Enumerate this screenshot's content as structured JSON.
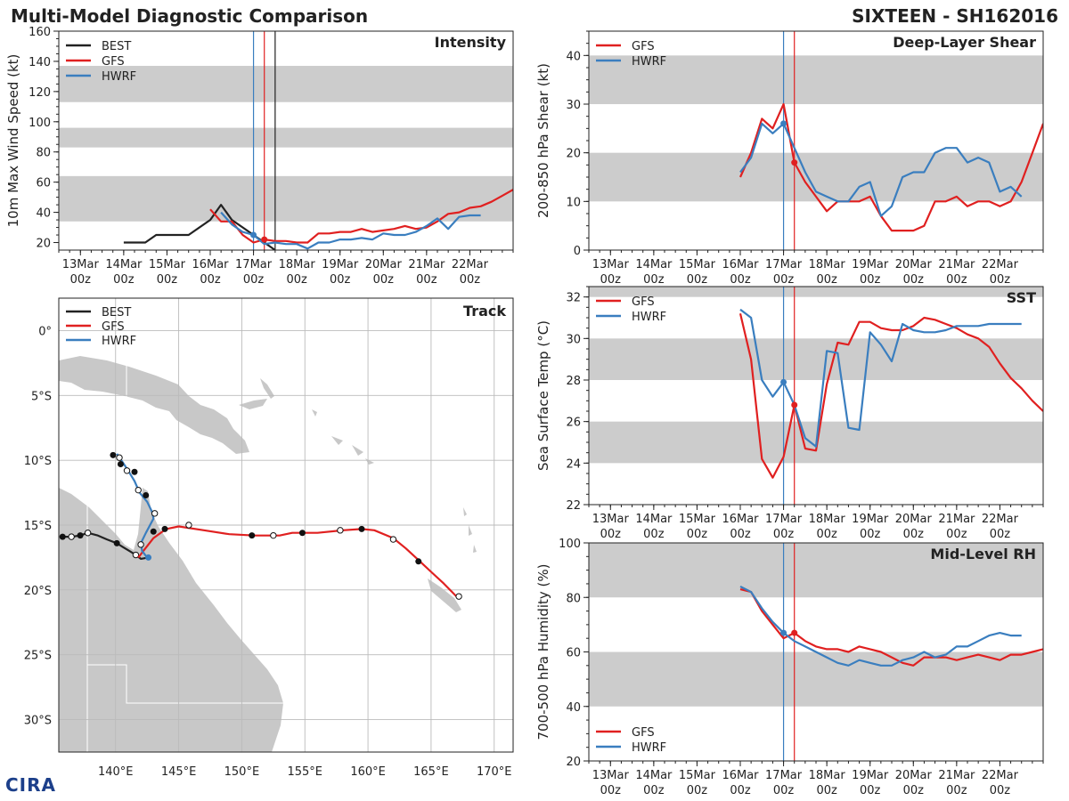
{
  "header": {
    "title": "Multi-Model Diagnostic Comparison",
    "storm": "SIXTEEN - SH162016",
    "logo": "CIRA"
  },
  "colors": {
    "best": "#222222",
    "gfs": "#e02020",
    "hwrf": "#3a7ebf",
    "band": "#cccccc",
    "land": "#c8c8c8",
    "grid": "#bbbbbb"
  },
  "time_axis": {
    "tick_labels": [
      "13Mar\n00z",
      "14Mar\n00z",
      "15Mar\n00z",
      "16Mar\n00z",
      "17Mar\n00z",
      "18Mar\n00z",
      "19Mar\n00z",
      "20Mar\n00z",
      "21Mar\n00z",
      "22Mar\n00z"
    ],
    "tick_days": [
      13,
      14,
      15,
      16,
      17,
      18,
      19,
      20,
      21,
      22
    ],
    "xlim": [
      12.5,
      23.0
    ],
    "vlines": [
      {
        "x": 17.0,
        "series": "hwrf"
      },
      {
        "x": 17.25,
        "series": "gfs"
      }
    ]
  },
  "chart_data": [
    {
      "id": "intensity",
      "type": "line",
      "title": "Intensity",
      "ylabel": "10m Max Wind Speed (kt)",
      "ylim": [
        15,
        160
      ],
      "yticks": [
        20,
        40,
        60,
        80,
        100,
        120,
        140,
        160
      ],
      "bands": [
        [
          34,
          64
        ],
        [
          83,
          96
        ],
        [
          113,
          137
        ]
      ],
      "extra_vline": {
        "x": 17.5,
        "series": "best"
      },
      "legend": [
        "BEST",
        "GFS",
        "HWRF"
      ],
      "legend_position": "top-left",
      "series": [
        {
          "name": "BEST",
          "key": "best",
          "x": [
            14,
            14.5,
            14.75,
            15,
            15.5,
            16,
            16.25,
            16.5,
            17,
            17.25,
            17.5
          ],
          "y": [
            20,
            20,
            25,
            25,
            25,
            35,
            45,
            35,
            25,
            20,
            15
          ]
        },
        {
          "name": "GFS",
          "key": "gfs",
          "x": [
            16,
            16.25,
            16.5,
            16.75,
            17,
            17.25,
            17.5,
            17.75,
            18,
            18.25,
            18.5,
            18.75,
            19,
            19.25,
            19.5,
            19.75,
            20,
            20.25,
            20.5,
            20.75,
            21,
            21.25,
            21.5,
            21.75,
            22,
            22.25,
            22.5,
            22.75,
            23
          ],
          "y": [
            42,
            34,
            34,
            25,
            20,
            22,
            21,
            21,
            20,
            20,
            26,
            26,
            27,
            27,
            29,
            27,
            28,
            29,
            31,
            29,
            30,
            34,
            39,
            40,
            43,
            44,
            47,
            51,
            55
          ]
        },
        {
          "name": "HWRF",
          "key": "hwrf",
          "x": [
            16.25,
            16.5,
            16.75,
            17,
            17.25,
            17.5,
            17.75,
            18,
            18.25,
            18.5,
            18.75,
            19,
            19.25,
            19.5,
            19.75,
            20,
            20.25,
            20.5,
            20.75,
            21,
            21.25,
            21.5,
            21.75,
            22,
            22.25
          ],
          "y": [
            40,
            32,
            27,
            25,
            19,
            20,
            19,
            19,
            16,
            20,
            20,
            22,
            22,
            23,
            22,
            26,
            25,
            25,
            27,
            31,
            36,
            29,
            37,
            38,
            38
          ]
        }
      ],
      "markers": [
        {
          "key": "hwrf",
          "x": 17,
          "y": 25
        },
        {
          "key": "gfs",
          "x": 17.25,
          "y": 22
        }
      ]
    },
    {
      "id": "shear",
      "type": "line",
      "title": "Deep-Layer Shear",
      "ylabel": "200-850 hPa Shear (kt)",
      "ylim": [
        0,
        45
      ],
      "yticks": [
        0,
        10,
        20,
        30,
        40
      ],
      "bands": [
        [
          10,
          20
        ],
        [
          30,
          40
        ]
      ],
      "legend": [
        "GFS",
        "HWRF"
      ],
      "legend_position": "top-left",
      "series": [
        {
          "name": "GFS",
          "key": "gfs",
          "x": [
            16,
            16.25,
            16.5,
            16.75,
            17,
            17.25,
            17.5,
            17.75,
            18,
            18.25,
            18.5,
            18.75,
            19,
            19.25,
            19.5,
            19.75,
            20,
            20.25,
            20.5,
            20.75,
            21,
            21.25,
            21.5,
            21.75,
            22,
            22.25,
            22.5,
            22.75,
            23
          ],
          "y": [
            15,
            20,
            27,
            25,
            30,
            18,
            14,
            11,
            8,
            10,
            10,
            10,
            11,
            7,
            4,
            4,
            4,
            5,
            10,
            10,
            11,
            9,
            10,
            10,
            9,
            10,
            14,
            20,
            26
          ]
        },
        {
          "name": "HWRF",
          "key": "hwrf",
          "x": [
            16,
            16.25,
            16.5,
            16.75,
            17,
            17.25,
            17.5,
            17.75,
            18,
            18.25,
            18.5,
            18.75,
            19,
            19.25,
            19.5,
            19.75,
            20,
            20.25,
            20.5,
            20.75,
            21,
            21.25,
            21.5,
            21.75,
            22,
            22.25,
            22.5
          ],
          "y": [
            16,
            19,
            26,
            24,
            26,
            21,
            16,
            12,
            11,
            10,
            10,
            13,
            14,
            7,
            9,
            15,
            16,
            16,
            20,
            21,
            21,
            18,
            19,
            18,
            12,
            13,
            11
          ]
        }
      ],
      "markers": [
        {
          "key": "hwrf",
          "x": 17,
          "y": 26
        },
        {
          "key": "gfs",
          "x": 17.25,
          "y": 18
        }
      ]
    },
    {
      "id": "sst",
      "type": "line",
      "title": "SST",
      "ylabel": "Sea Surface Temp (°C)",
      "ylim": [
        22,
        32.5
      ],
      "yticks": [
        22,
        24,
        26,
        28,
        30,
        32
      ],
      "bands": [
        [
          24,
          26
        ],
        [
          28,
          30
        ],
        [
          32,
          32.5
        ]
      ],
      "legend": [
        "GFS",
        "HWRF"
      ],
      "legend_position": "top-left",
      "series": [
        {
          "name": "GFS",
          "key": "gfs",
          "x": [
            16,
            16.25,
            16.5,
            16.75,
            17,
            17.25,
            17.5,
            17.75,
            18,
            18.25,
            18.5,
            18.75,
            19,
            19.25,
            19.5,
            19.75,
            20,
            20.25,
            20.5,
            20.75,
            21,
            21.25,
            21.5,
            21.75,
            22,
            22.25,
            22.5,
            22.75,
            23
          ],
          "y": [
            31.2,
            29.0,
            24.2,
            23.3,
            24.3,
            26.8,
            24.7,
            24.6,
            27.8,
            29.8,
            29.7,
            30.8,
            30.8,
            30.5,
            30.4,
            30.4,
            30.6,
            31.0,
            30.9,
            30.7,
            30.5,
            30.2,
            30.0,
            29.6,
            28.8,
            28.1,
            27.6,
            27.0,
            26.5
          ]
        },
        {
          "name": "HWRF",
          "key": "hwrf",
          "x": [
            16,
            16.25,
            16.5,
            16.75,
            17,
            17.25,
            17.5,
            17.75,
            18,
            18.25,
            18.5,
            18.75,
            19,
            19.25,
            19.5,
            19.75,
            20,
            20.25,
            20.5,
            20.75,
            21,
            21.25,
            21.5,
            21.75,
            22,
            22.25,
            22.5
          ],
          "y": [
            31.4,
            31.0,
            28.0,
            27.2,
            27.9,
            26.8,
            25.2,
            24.8,
            29.4,
            29.3,
            25.7,
            25.6,
            30.3,
            29.7,
            28.9,
            30.7,
            30.4,
            30.3,
            30.3,
            30.4,
            30.6,
            30.6,
            30.6,
            30.7,
            30.7,
            30.7,
            30.7
          ]
        }
      ],
      "markers": [
        {
          "key": "hwrf",
          "x": 17,
          "y": 27.9
        },
        {
          "key": "gfs",
          "x": 17.25,
          "y": 26.8
        }
      ]
    },
    {
      "id": "rh",
      "type": "line",
      "title": "Mid-Level RH",
      "ylabel": "700-500 hPa Humidity (%)",
      "ylim": [
        20,
        100
      ],
      "yticks": [
        20,
        40,
        60,
        80,
        100
      ],
      "bands": [
        [
          40,
          60
        ],
        [
          80,
          100
        ]
      ],
      "legend": [
        "GFS",
        "HWRF"
      ],
      "legend_position": "bottom-left",
      "series": [
        {
          "name": "GFS",
          "key": "gfs",
          "x": [
            16,
            16.25,
            16.5,
            16.75,
            17,
            17.25,
            17.5,
            17.75,
            18,
            18.25,
            18.5,
            18.75,
            19,
            19.25,
            19.5,
            19.75,
            20,
            20.25,
            20.5,
            20.75,
            21,
            21.25,
            21.5,
            21.75,
            22,
            22.25,
            22.5,
            22.75,
            23
          ],
          "y": [
            83,
            82,
            75,
            70,
            65,
            67,
            64,
            62,
            61,
            61,
            60,
            62,
            61,
            60,
            58,
            56,
            55,
            58,
            58,
            58,
            57,
            58,
            59,
            58,
            57,
            59,
            59,
            60,
            61
          ]
        },
        {
          "name": "HWRF",
          "key": "hwrf",
          "x": [
            16,
            16.25,
            16.5,
            16.75,
            17,
            17.25,
            17.5,
            17.75,
            18,
            18.25,
            18.5,
            18.75,
            19,
            19.25,
            19.5,
            19.75,
            20,
            20.25,
            20.5,
            20.75,
            21,
            21.25,
            21.5,
            21.75,
            22,
            22.25,
            22.5
          ],
          "y": [
            84,
            82,
            76,
            71,
            67,
            64,
            62,
            60,
            58,
            56,
            55,
            57,
            56,
            55,
            55,
            57,
            58,
            60,
            58,
            59,
            62,
            62,
            64,
            66,
            67,
            66,
            66
          ]
        }
      ],
      "markers": [
        {
          "key": "hwrf",
          "x": 17,
          "y": 67
        },
        {
          "key": "gfs",
          "x": 17.25,
          "y": 67
        }
      ]
    }
  ],
  "track": {
    "title": "Track",
    "legend": [
      "BEST",
      "GFS",
      "HWRF"
    ],
    "lon_range": [
      135.5,
      171.5
    ],
    "lat_range": [
      -32.5,
      2.5
    ],
    "lon_ticks": [
      140,
      145,
      150,
      155,
      160,
      165,
      170
    ],
    "lon_tick_labels": [
      "140°E",
      "145°E",
      "150°E",
      "155°E",
      "160°E",
      "165°E",
      "170°E"
    ],
    "lat_ticks": [
      0,
      -5,
      -10,
      -15,
      -20,
      -25,
      -30
    ],
    "lat_tick_labels": [
      "0°",
      "5°S",
      "10°S",
      "15°S",
      "20°S",
      "25°S",
      "30°S"
    ],
    "best": {
      "path": [
        [
          135.8,
          -15.9
        ],
        [
          136.5,
          -15.9
        ],
        [
          137.2,
          -15.8
        ],
        [
          137.8,
          -15.6
        ],
        [
          138.6,
          -15.8
        ],
        [
          139.3,
          -16.1
        ],
        [
          140.1,
          -16.4
        ],
        [
          140.6,
          -16.7
        ],
        [
          141.1,
          -17.0
        ],
        [
          141.6,
          -17.3
        ],
        [
          142.0,
          -17.6
        ],
        [
          142.6,
          -17.5
        ]
      ],
      "filled": [
        [
          135.8,
          -15.9
        ],
        [
          137.2,
          -15.8
        ],
        [
          140.1,
          -16.4
        ]
      ],
      "open": [
        [
          136.5,
          -15.9
        ],
        [
          137.8,
          -15.6
        ],
        [
          141.6,
          -17.3
        ]
      ]
    },
    "gfs": {
      "path": [
        [
          141.8,
          -17.5
        ],
        [
          142.2,
          -17.0
        ],
        [
          143.0,
          -16.0
        ],
        [
          144.0,
          -15.3
        ],
        [
          145.0,
          -15.1
        ],
        [
          147.0,
          -15.4
        ],
        [
          149.0,
          -15.7
        ],
        [
          151.0,
          -15.8
        ],
        [
          153.0,
          -15.8
        ],
        [
          154.0,
          -15.6
        ],
        [
          156.0,
          -15.6
        ],
        [
          158.0,
          -15.4
        ],
        [
          159.5,
          -15.3
        ],
        [
          160.5,
          -15.4
        ],
        [
          162.0,
          -16.0
        ],
        [
          163.0,
          -16.8
        ],
        [
          164.0,
          -17.7
        ],
        [
          165.0,
          -18.6
        ],
        [
          166.0,
          -19.5
        ],
        [
          167.0,
          -20.5
        ]
      ],
      "filled": [
        [
          143.9,
          -15.3
        ],
        [
          150.8,
          -15.8
        ],
        [
          154.8,
          -15.6
        ],
        [
          159.5,
          -15.3
        ],
        [
          164.0,
          -17.8
        ]
      ],
      "open": [
        [
          145.8,
          -15.0
        ],
        [
          152.5,
          -15.8
        ],
        [
          157.8,
          -15.4
        ],
        [
          162.0,
          -16.1
        ],
        [
          167.2,
          -20.5
        ]
      ]
    },
    "hwrf": {
      "path": [
        [
          142.5,
          -17.5
        ],
        [
          142.1,
          -17.0
        ],
        [
          142.0,
          -16.4
        ],
        [
          142.4,
          -15.6
        ],
        [
          143.0,
          -14.5
        ],
        [
          142.9,
          -14.0
        ],
        [
          142.5,
          -13.2
        ],
        [
          141.9,
          -12.5
        ],
        [
          141.5,
          -11.6
        ],
        [
          141.0,
          -10.8
        ],
        [
          140.6,
          -10.2
        ],
        [
          140.1,
          -9.5
        ]
      ],
      "filled": [
        [
          143.0,
          -15.5
        ],
        [
          142.4,
          -12.7
        ],
        [
          141.5,
          -10.9
        ],
        [
          140.4,
          -10.3
        ],
        [
          139.8,
          -9.6
        ]
      ],
      "open": [
        [
          142.0,
          -16.5
        ],
        [
          143.1,
          -14.1
        ],
        [
          141.8,
          -12.3
        ],
        [
          140.9,
          -10.8
        ],
        [
          140.3,
          -9.8
        ]
      ]
    }
  }
}
